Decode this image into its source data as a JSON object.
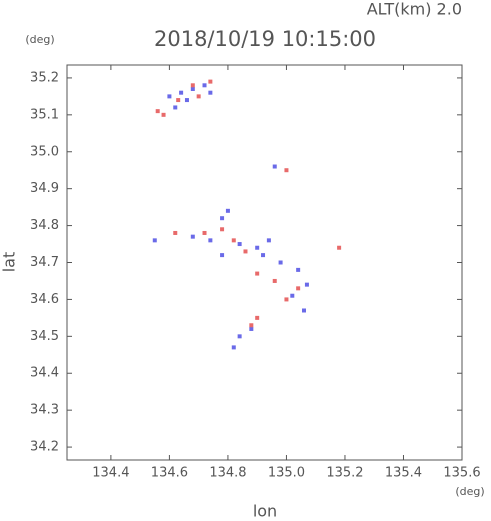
{
  "chart_data": {
    "type": "scatter",
    "title": "2018/10/19 10:15:00",
    "subtitle": "ALT(km) 2.0",
    "x_label": "lon",
    "y_label": "lat",
    "x_unit": "(deg)",
    "y_unit": "(deg)",
    "xlim": [
      134.25,
      135.6
    ],
    "ylim": [
      34.165,
      35.235
    ],
    "xticks": [
      134.4,
      134.6,
      134.8,
      {
        "value": 135.0,
        "label": "135.0"
      },
      135.2,
      135.4,
      135.6
    ],
    "yticks": [
      34.2,
      34.3,
      34.4,
      34.5,
      34.6,
      34.7,
      34.8,
      34.9,
      {
        "value": 35.0,
        "label": "35.0"
      },
      35.1,
      35.2
    ],
    "series": [
      {
        "color": "#6a6ae8",
        "x": [
          134.6,
          134.64,
          134.68,
          134.72,
          134.62,
          134.66,
          134.74,
          134.96,
          134.8,
          134.78,
          134.55,
          134.68,
          134.74,
          134.84,
          134.9,
          134.92,
          134.98,
          135.04,
          135.07,
          135.02,
          135.06,
          134.88,
          134.84,
          134.82,
          134.78,
          134.94
        ],
        "y": [
          35.15,
          35.16,
          35.17,
          35.18,
          35.12,
          35.14,
          35.16,
          34.96,
          34.84,
          34.82,
          34.76,
          34.77,
          34.76,
          34.75,
          34.74,
          34.72,
          34.7,
          34.68,
          34.64,
          34.61,
          34.57,
          34.52,
          34.5,
          34.47,
          34.72,
          34.76
        ]
      },
      {
        "color": "#e86a6a",
        "x": [
          134.58,
          134.56,
          134.63,
          134.7,
          134.74,
          134.68,
          135.0,
          134.78,
          134.72,
          134.82,
          134.86,
          134.9,
          134.96,
          135.04,
          135.0,
          134.9,
          134.88,
          134.62,
          135.18
        ],
        "y": [
          35.1,
          35.11,
          35.14,
          35.15,
          35.19,
          35.18,
          34.95,
          34.79,
          34.78,
          34.76,
          34.73,
          34.67,
          34.65,
          34.63,
          34.6,
          34.55,
          34.53,
          34.78,
          34.74
        ]
      }
    ]
  }
}
